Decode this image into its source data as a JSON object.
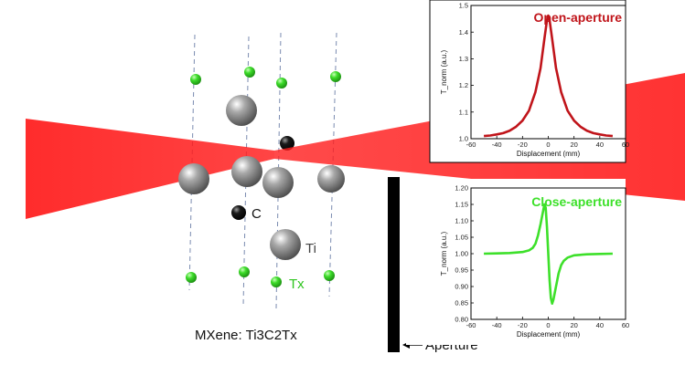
{
  "figure": {
    "caption_prefix": "MXene: ",
    "caption_formula": "Ti3C2Tx",
    "aperture_label": "Aperture",
    "legend": {
      "c_label": "C",
      "ti_label": "Ti",
      "tx_label": "Tx"
    },
    "colors": {
      "laser": "#ff1a1a",
      "open_curve": "#c0141a",
      "close_curve": "#3de02a",
      "tx_atom": "#3ddc2a",
      "ti_atom": "#8c8c8c",
      "c_atom": "#111111"
    }
  },
  "chart_data": [
    {
      "type": "line",
      "title": "Open-aperture",
      "xlabel": "Displacement (mm)",
      "ylabel": "T_norm (a.u.)",
      "xlim": [
        -60,
        60
      ],
      "ylim": [
        1.0,
        1.5
      ],
      "xticks": [
        -60,
        -40,
        -20,
        0,
        20,
        40,
        60
      ],
      "yticks": [
        1.0,
        1.1,
        1.2,
        1.3,
        1.4,
        1.5
      ],
      "yticklabels": [
        "1.0",
        "1.1",
        "1.2",
        "1.3",
        "1.4",
        "1.5"
      ],
      "x": [
        -50,
        -45,
        -40,
        -35,
        -30,
        -25,
        -20,
        -15,
        -10,
        -6,
        -3,
        -1,
        0,
        1,
        3,
        6,
        10,
        15,
        20,
        25,
        30,
        35,
        40,
        45,
        50
      ],
      "y": [
        1.01,
        1.012,
        1.016,
        1.021,
        1.03,
        1.045,
        1.068,
        1.105,
        1.175,
        1.265,
        1.375,
        1.445,
        1.462,
        1.445,
        1.375,
        1.265,
        1.175,
        1.105,
        1.068,
        1.045,
        1.03,
        1.021,
        1.016,
        1.012,
        1.01
      ]
    },
    {
      "type": "line",
      "title": "Close-aperture",
      "xlabel": "Displacement (mm)",
      "ylabel": "T_norm (a.u.)",
      "xlim": [
        -60,
        60
      ],
      "ylim": [
        0.8,
        1.2
      ],
      "xticks": [
        -60,
        -40,
        -20,
        0,
        20,
        40,
        60
      ],
      "yticks": [
        0.8,
        0.85,
        0.9,
        0.95,
        1.0,
        1.05,
        1.1,
        1.15,
        1.2
      ],
      "yticklabels": [
        "0.80",
        "0.85",
        "0.90",
        "0.95",
        "1.00",
        "1.05",
        "1.10",
        "1.15",
        "1.20"
      ],
      "x": [
        -50,
        -40,
        -30,
        -20,
        -15,
        -12,
        -10,
        -8,
        -6,
        -4,
        -3,
        -2,
        -1,
        0,
        1,
        2,
        3,
        4,
        6,
        8,
        10,
        12,
        15,
        20,
        30,
        40,
        50
      ],
      "y": [
        1.0,
        1.001,
        1.002,
        1.005,
        1.01,
        1.018,
        1.03,
        1.055,
        1.09,
        1.13,
        1.15,
        1.14,
        1.08,
        1.0,
        0.92,
        0.865,
        0.848,
        0.86,
        0.9,
        0.94,
        0.965,
        0.978,
        0.988,
        0.995,
        0.998,
        0.999,
        1.0
      ]
    }
  ]
}
